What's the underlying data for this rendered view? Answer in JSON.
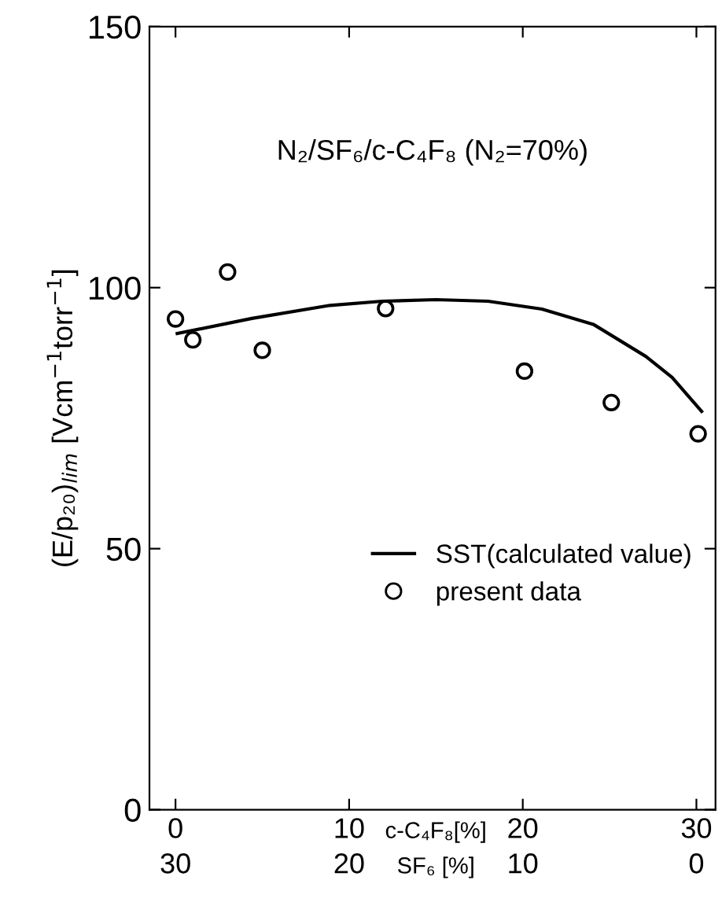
{
  "chart_data": {
    "type": "scatter",
    "title": "N₂/SF₆/c-C₄F₈ (N₂=70%)",
    "xlabel": "c-C₄F₈[%]",
    "x2label": "SF₆ [%]",
    "ylabel": "(E/p₂₀)$_{lim}$ [Vcm$^{−1}$torr$^{−1}$]",
    "xlim": [
      -1.5,
      31.1
    ],
    "xticks": [
      0,
      10,
      20,
      30
    ],
    "x2lim": [
      31.5,
      -1.1
    ],
    "x2ticks": [
      30,
      20,
      10,
      0
    ],
    "ylim": [
      0,
      150
    ],
    "yticks": [
      0,
      50,
      100,
      150
    ],
    "grid": false,
    "legend": "right",
    "series": [
      {
        "name": "SST(calculated value)",
        "type": "line",
        "color": "#000000",
        "marker": "none",
        "line_style": "solid",
        "x": [
          0.1,
          4.4,
          8.9,
          11.9,
          15.0,
          18.0,
          21.1,
          24.1,
          27.1,
          28.6,
          30.3
        ],
        "values": [
          91.2,
          94.1,
          96.6,
          97.4,
          97.7,
          97.4,
          95.9,
          92.9,
          86.8,
          82.8,
          76.3
        ]
      },
      {
        "name": "present data",
        "color": "#000000",
        "marker": "circle",
        "x": [
          0,
          1,
          3,
          5,
          12.1,
          20.1,
          25.1,
          30.1
        ],
        "values": [
          94,
          90,
          103,
          88,
          96,
          84,
          78,
          72
        ]
      }
    ]
  }
}
